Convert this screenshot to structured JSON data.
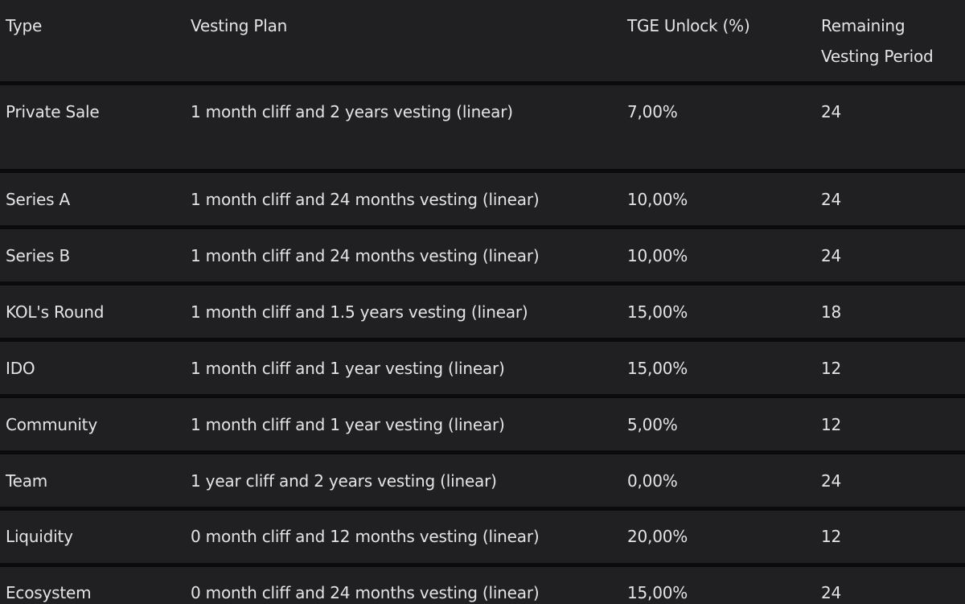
{
  "table": {
    "headers": [
      "Type",
      "Vesting Plan",
      "TGE Unlock (%)",
      "Remaining",
      "Vesting Period"
    ],
    "rows": [
      {
        "type": "Private Sale",
        "plan": "1 month cliff and 2 years vesting (linear)",
        "tge": "7,00%",
        "remaining": "24"
      },
      {
        "type": "Series A",
        "plan": "1 month cliff and 24 months vesting (linear)",
        "tge": "10,00%",
        "remaining": "24"
      },
      {
        "type": "Series B",
        "plan": "1 month cliff and 24 months vesting (linear)",
        "tge": "10,00%",
        "remaining": "24"
      },
      {
        "type": "KOL's Round",
        "plan": "1 month cliff and 1.5 years vesting (linear)",
        "tge": "15,00%",
        "remaining": "18"
      },
      {
        "type": "IDO",
        "plan": "1 month cliff and 1 year vesting (linear)",
        "tge": "15,00%",
        "remaining": "12"
      },
      {
        "type": "Community",
        "plan": "1 month cliff and 1 year vesting (linear)",
        "tge": "5,00%",
        "remaining": "12"
      },
      {
        "type": "Team",
        "plan": "1 year cliff and 2 years vesting (linear)",
        "tge": "0,00%",
        "remaining": "24"
      },
      {
        "type": "Liquidity",
        "plan": "0 month cliff and 12 months vesting (linear)",
        "tge": "20,00%",
        "remaining": "12"
      },
      {
        "type": "Ecosystem",
        "plan": "0 month cliff and 24 months vesting (linear)",
        "tge": "15,00%",
        "remaining": "24"
      }
    ]
  },
  "colors": {
    "page_background": "#0b0b0d",
    "row_background": "#202023",
    "text": "#e4e4e6"
  }
}
